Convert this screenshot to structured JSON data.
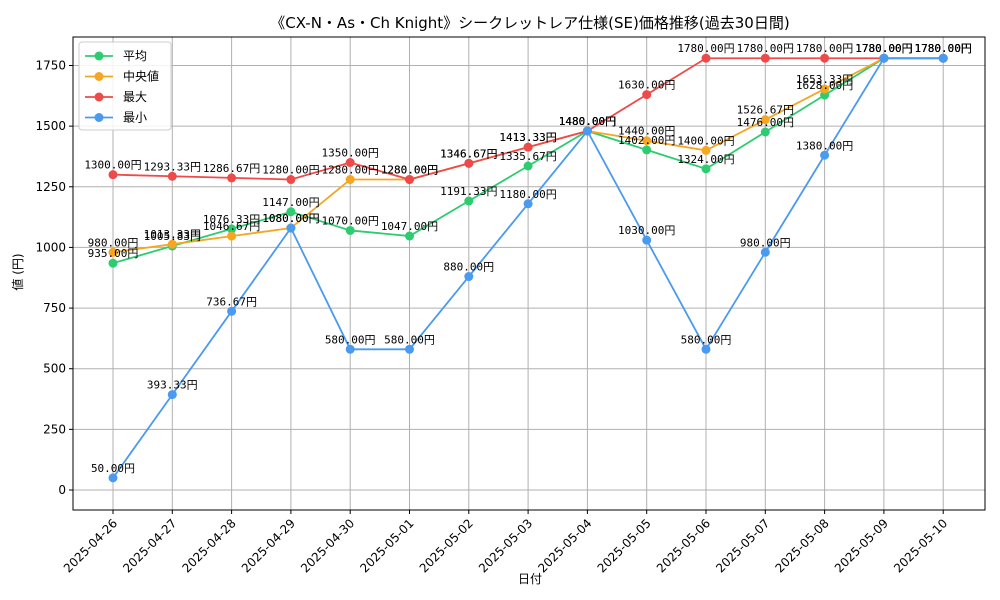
{
  "chart_data": {
    "type": "line",
    "title": "《CX-N・As・Ch Knight》シークレットレア仕様(SE)価格推移(過去30日間)",
    "xlabel": "日付",
    "ylabel": "値 (円)",
    "ylim": [
      0,
      1875
    ],
    "yticks": [
      0,
      250,
      500,
      750,
      1000,
      1250,
      1500,
      1750
    ],
    "grid": true,
    "legend_position": "top-left",
    "categories": [
      "2025-04-26",
      "2025-04-27",
      "2025-04-28",
      "2025-04-29",
      "2025-04-30",
      "2025-05-01",
      "2025-05-02",
      "2025-05-03",
      "2025-05-04",
      "2025-05-05",
      "2025-05-06",
      "2025-05-07",
      "2025-05-08",
      "2025-05-09",
      "2025-05-10"
    ],
    "series": [
      {
        "name": "平均",
        "color": "#2ecc71",
        "values": [
          935.0,
          1005.83,
          1076.33,
          1147.0,
          1070.0,
          1047.0,
          1191.33,
          1335.67,
          1480.0,
          1402.0,
          1324.0,
          1476.0,
          1628.0,
          1780.0,
          1780.0
        ],
        "labels": [
          "935.00円",
          "1005.83円",
          "1076.33円",
          "1147.00円",
          "1070.00円",
          "1047.00円",
          "1191.33円",
          "1335.67円",
          "1480.00円",
          "1402.00円",
          "1324.00円",
          "1476.00円",
          "1628.00円",
          "1780.00円",
          "1780.00円"
        ]
      },
      {
        "name": "中央値",
        "color": "#f5a623",
        "values": [
          980.0,
          1013.33,
          1046.67,
          1080.0,
          1280.0,
          1280.0,
          1346.67,
          1413.33,
          1480.0,
          1440.0,
          1400.0,
          1526.67,
          1653.33,
          1780.0,
          1780.0
        ],
        "labels": [
          "980.00円",
          "1013.33円",
          "1046.67円",
          "1080.00円",
          "1280.00円",
          "1280.00円",
          "1346.67円",
          "1413.33円",
          "1480.00円",
          "1440.00円",
          "1400.00円",
          "1526.67円",
          "1653.33円",
          "1780.00円",
          "1780.00円"
        ]
      },
      {
        "name": "最大",
        "color": "#ef4a4a",
        "values": [
          1300.0,
          1293.33,
          1286.67,
          1280.0,
          1350.0,
          1280.0,
          1346.67,
          1413.33,
          1480.0,
          1630.0,
          1780.0,
          1780.0,
          1780.0,
          1780.0,
          1780.0
        ],
        "labels": [
          "1300.00円",
          "1293.33円",
          "1286.67円",
          "1280.00円",
          "1350.00円",
          "1280.00円",
          "1346.67円",
          "1413.33円",
          "1480.00円",
          "1630.00円",
          "1780.00円",
          "1780.00円",
          "1780.00円",
          "1780.00円",
          "1780.00円"
        ]
      },
      {
        "name": "最小",
        "color": "#4a9af0",
        "values": [
          50.0,
          393.33,
          736.67,
          1080.0,
          580.0,
          580.0,
          880.0,
          1180.0,
          1480.0,
          1030.0,
          580.0,
          980.0,
          1380.0,
          1780.0,
          1780.0
        ],
        "labels": [
          "50.00円",
          "393.33円",
          "736.67円",
          "1080.00円",
          "580.00円",
          "580.00円",
          "880.00円",
          "1180.00円",
          "1480.00円",
          "1030.00円",
          "580.00円",
          "980.00円",
          "1380.00円",
          "1780.00円",
          "1780.00円"
        ]
      }
    ]
  }
}
